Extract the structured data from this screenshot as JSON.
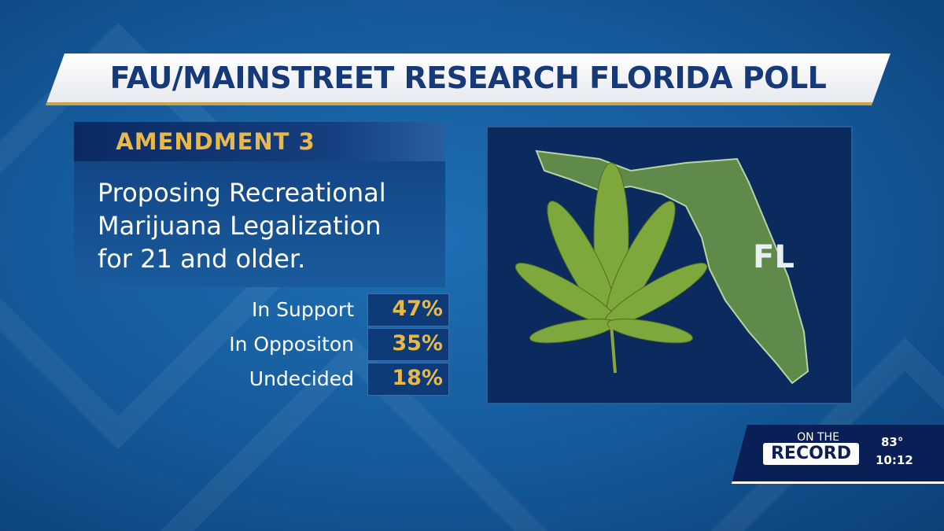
{
  "header": {
    "title": "FAU/MAINSTREET RESEARCH FLORIDA POLL"
  },
  "panel": {
    "heading": "AMENDMENT  3",
    "description": [
      "Proposing Recreational",
      "Marijuana Legalization",
      "for 21 and older."
    ],
    "results": [
      {
        "label": "In Support",
        "value": "47%"
      },
      {
        "label": "In Oppositon",
        "value": "35%"
      },
      {
        "label": "Undecided",
        "value": "18%"
      }
    ]
  },
  "map": {
    "label": "FL"
  },
  "bug": {
    "show_top": "ON THE",
    "show_name": "RECORD",
    "temperature": "83°",
    "time": "10:12"
  }
}
